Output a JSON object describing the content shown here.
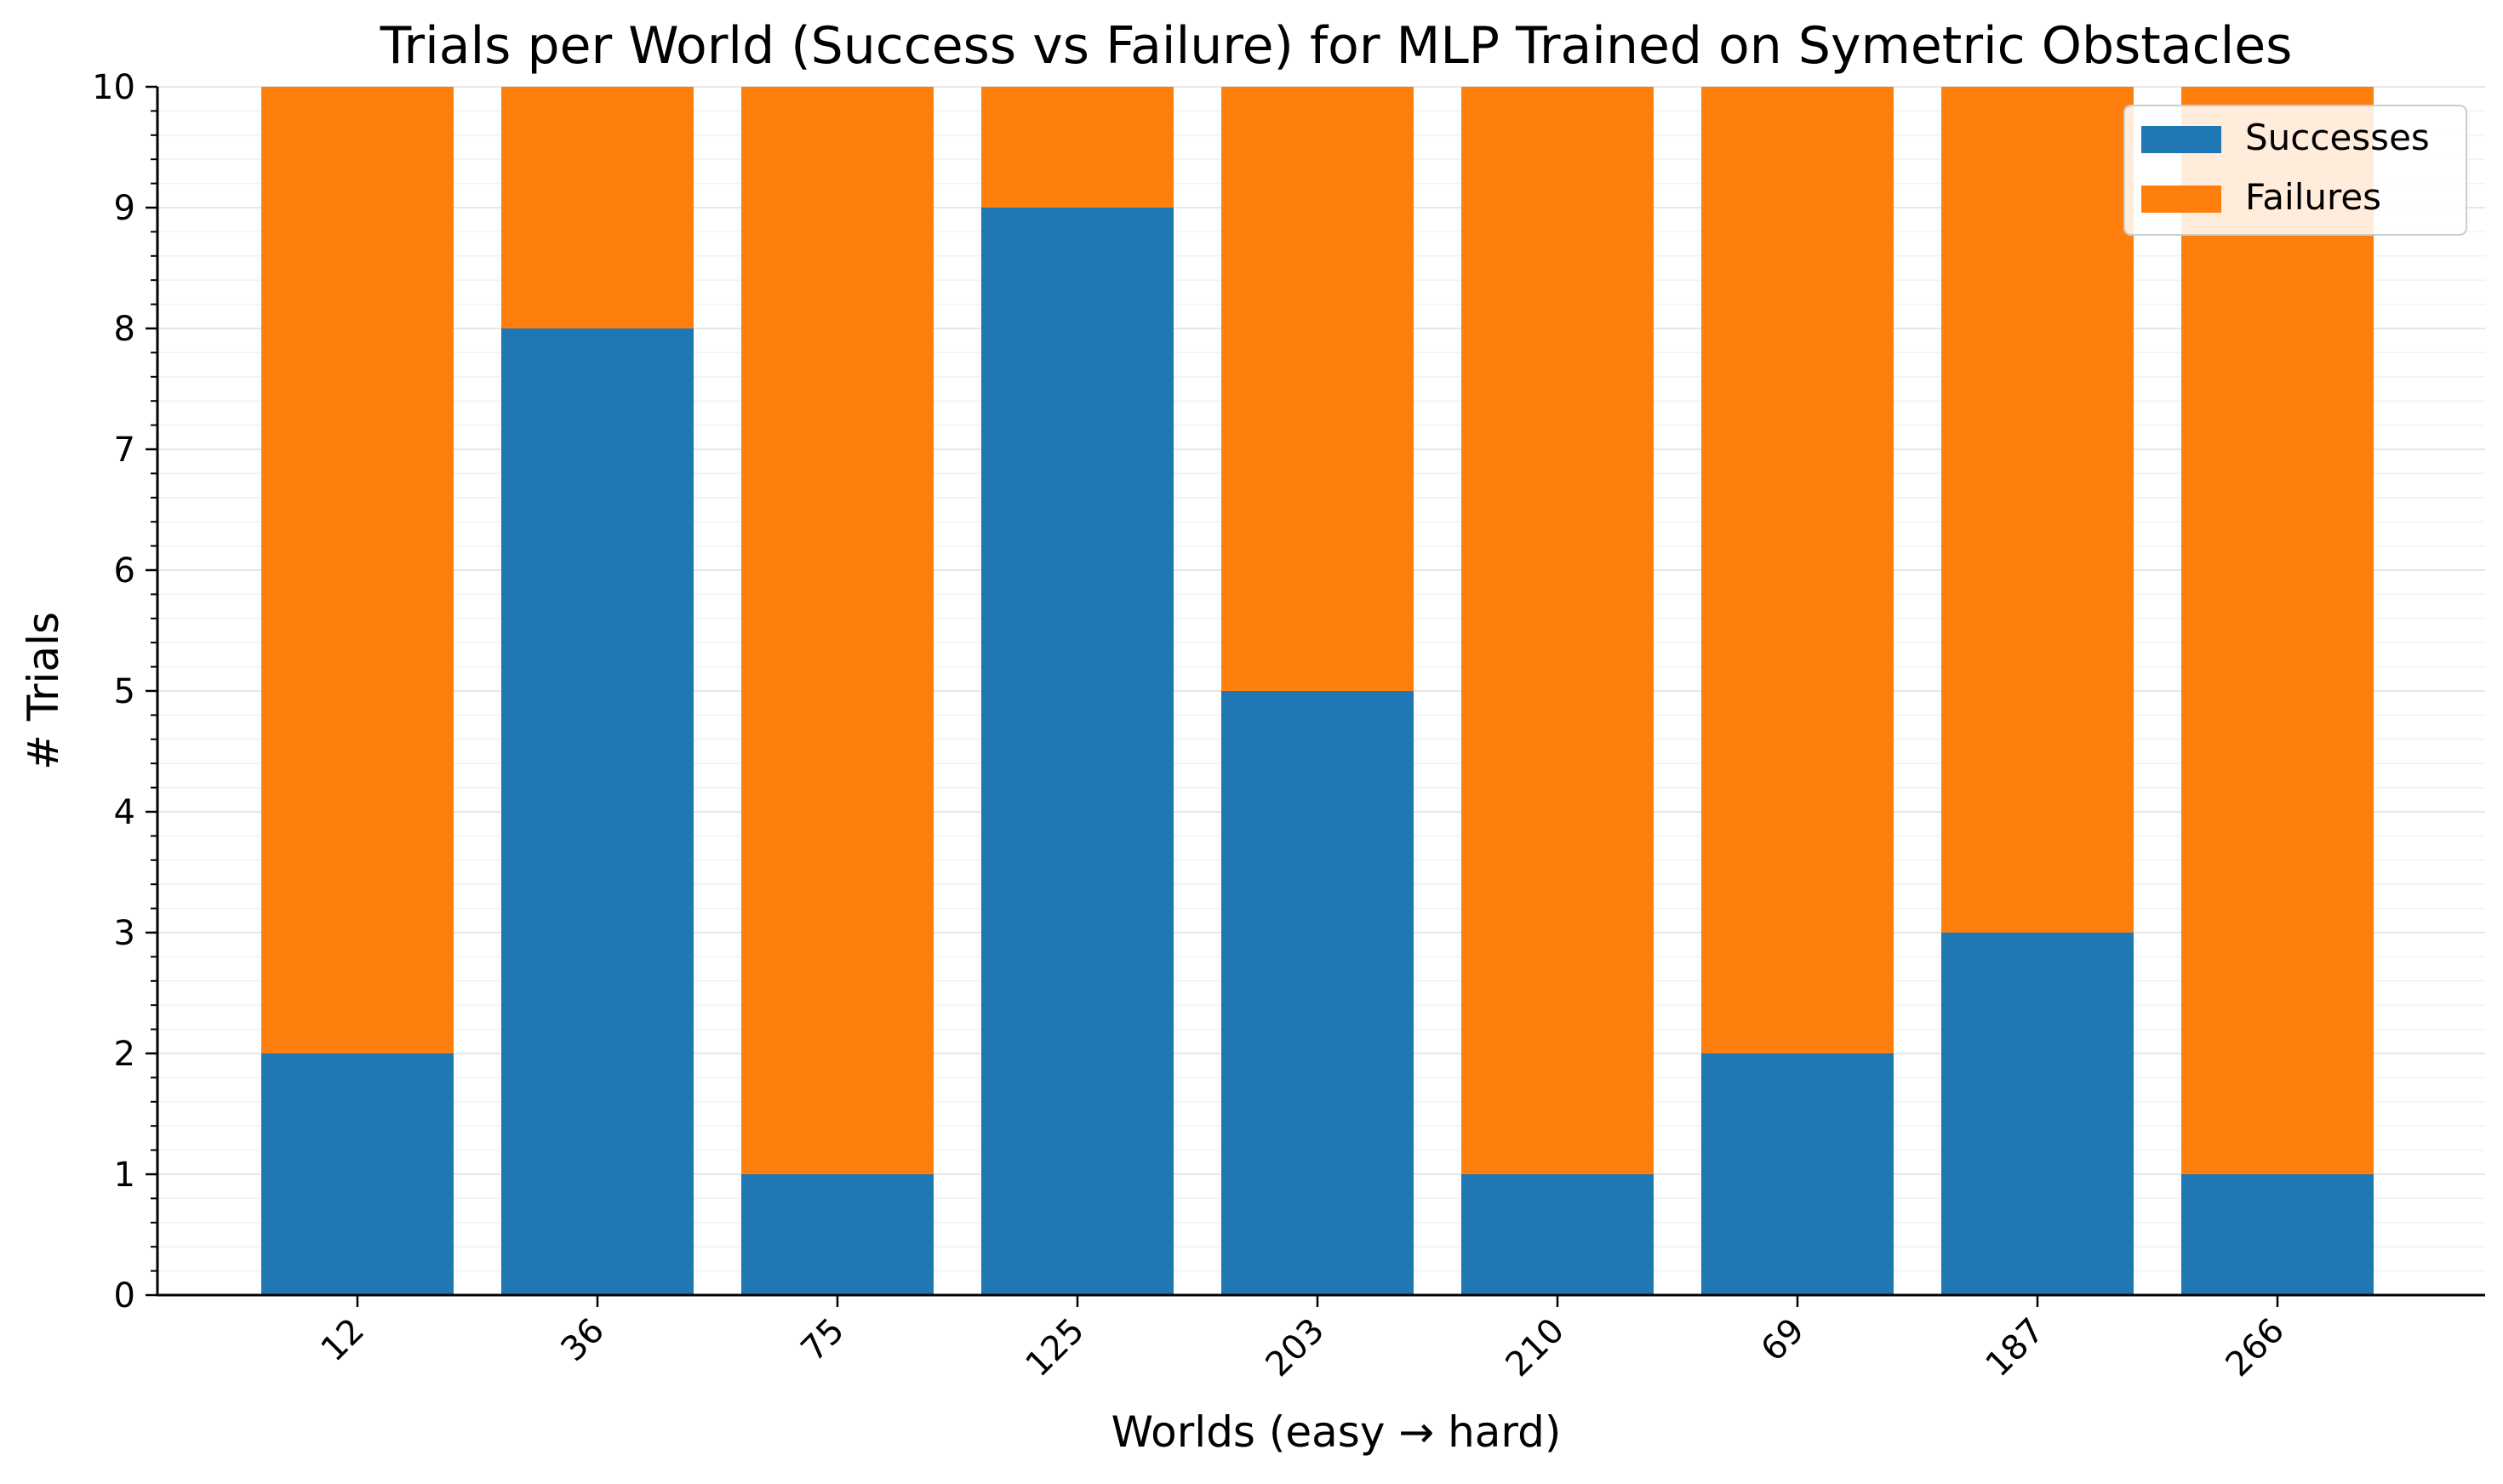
{
  "chart_data": {
    "type": "bar",
    "stacked": true,
    "title": "Trials per World (Success vs Failure) for MLP Trained on Symetric Obstacles",
    "xlabel": "Worlds (easy → hard)",
    "ylabel": "# Trials",
    "categories": [
      "12",
      "36",
      "75",
      "125",
      "203",
      "210",
      "69",
      "187",
      "266"
    ],
    "series": [
      {
        "name": "Successes",
        "color": "#1f77b4",
        "values": [
          2,
          8,
          1,
          9,
          5,
          1,
          2,
          3,
          1
        ]
      },
      {
        "name": "Failures",
        "color": "#ff7f0e",
        "values": [
          8,
          2,
          9,
          1,
          5,
          9,
          8,
          7,
          9
        ]
      }
    ],
    "ylim": [
      0,
      10
    ],
    "yticks": [
      "0",
      "1",
      "2",
      "3",
      "4",
      "5",
      "6",
      "7",
      "8",
      "9",
      "10"
    ],
    "grid": true,
    "legend_position": "top-right"
  }
}
